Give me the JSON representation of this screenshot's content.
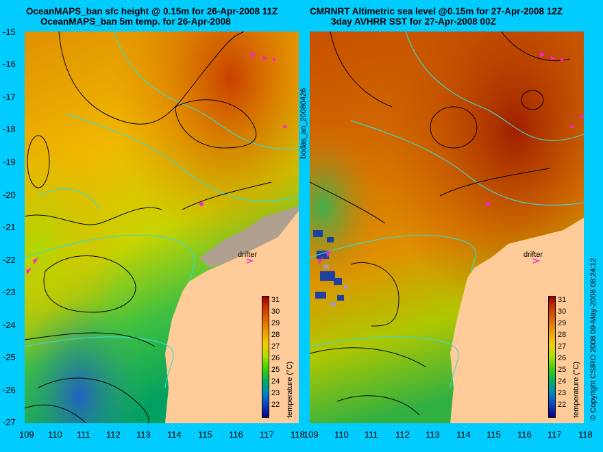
{
  "titles": {
    "left_line1": "OceanMAPS_ban sfc height @ 0.15m for 26-Apr-2008 11Z",
    "left_line2": "OceanMAPS_ban 5m temp. for 26-Apr-2008",
    "right_line1": "CMRNRT Altimetric sea level  @0.15m  for 27-Apr-2008 12Z",
    "right_line2": "3day AVHRR SST for 27-Apr-2008 00Z"
  },
  "axes": {
    "lon_ticks": [
      "109",
      "110",
      "111",
      "112",
      "113",
      "114",
      "115",
      "116",
      "117",
      "118"
    ],
    "lat_ticks": [
      "-15",
      "-16",
      "-17",
      "-18",
      "-19",
      "-20",
      "-21",
      "-22",
      "-23",
      "-24",
      "-25",
      "-26",
      "-27"
    ],
    "lon_range": [
      109,
      118
    ],
    "lat_range": [
      -27,
      -15
    ]
  },
  "colorbar": {
    "label": "temperature (°C)",
    "ticks": [
      "31",
      "30",
      "29",
      "28",
      "27",
      "26",
      "25",
      "24",
      "23",
      "22"
    ],
    "colors": [
      "#b00000",
      "#cc3a00",
      "#e06a00",
      "#f0a000",
      "#f0d000",
      "#a8e000",
      "#3cd000",
      "#00b060",
      "#0088c0",
      "#1040c0",
      "#00008a"
    ]
  },
  "annotations": {
    "drifter_label": "drifter",
    "product_id": "bodas_an_20080426",
    "copyright": "© Copyright CSIRO 2008  09-May-2008 08:24:12"
  },
  "colors": {
    "background": "#00ccff",
    "land": "#ffcc99",
    "coast_shelf": "#b0a090",
    "contour_isobath": "#40d8d0",
    "contour_height": "#000000",
    "drifter_marker": "#ff22cc"
  }
}
